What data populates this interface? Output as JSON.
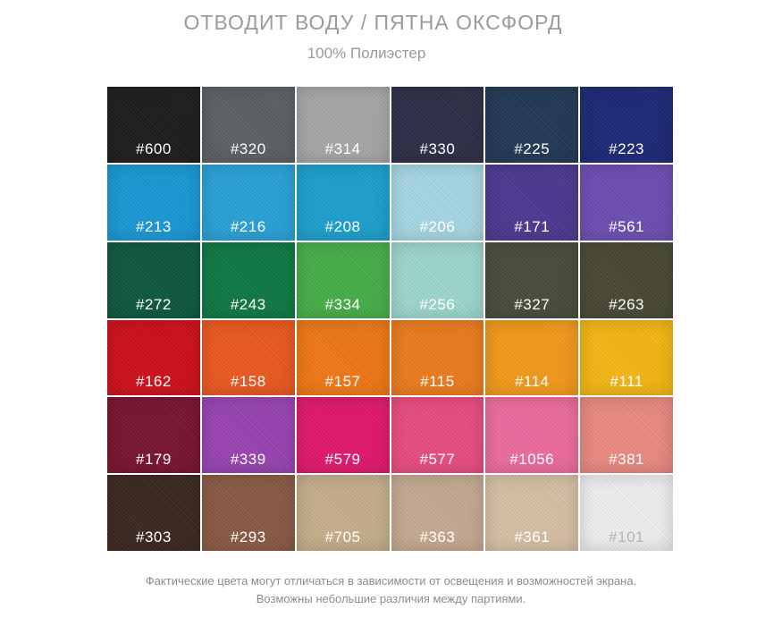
{
  "header": {
    "title": "ОТВОДИТ ВОДУ / ПЯТНА ОКСФОРД",
    "subtitle": "100%  Полиэстер"
  },
  "swatches": [
    {
      "code": "#600",
      "color": "#1e1e20"
    },
    {
      "code": "#320",
      "color": "#5d6266"
    },
    {
      "code": "#314",
      "color": "#a6a8aa"
    },
    {
      "code": "#330",
      "color": "#2f2f48"
    },
    {
      "code": "#225",
      "color": "#243a57"
    },
    {
      "code": "#223",
      "color": "#1e2a78"
    },
    {
      "code": "#213",
      "color": "#1a9ad6"
    },
    {
      "code": "#216",
      "color": "#2aa3d8"
    },
    {
      "code": "#208",
      "color": "#1da1cf"
    },
    {
      "code": "#206",
      "color": "#a8d9e6"
    },
    {
      "code": "#171",
      "color": "#4f3a92"
    },
    {
      "code": "#561",
      "color": "#6f4fb5"
    },
    {
      "code": "#272",
      "color": "#0f5a3e"
    },
    {
      "code": "#243",
      "color": "#0f7a45"
    },
    {
      "code": "#334",
      "color": "#48b04a"
    },
    {
      "code": "#256",
      "color": "#9fd9cf"
    },
    {
      "code": "#327",
      "color": "#4c4d3c"
    },
    {
      "code": "#263",
      "color": "#4a4a36"
    },
    {
      "code": "#162",
      "color": "#d0121b"
    },
    {
      "code": "#158",
      "color": "#ec5a22"
    },
    {
      "code": "#157",
      "color": "#f07a18"
    },
    {
      "code": "#115",
      "color": "#ee7d1f"
    },
    {
      "code": "#114",
      "color": "#f49b1c"
    },
    {
      "code": "#111",
      "color": "#f6b816"
    },
    {
      "code": "#179",
      "color": "#7b1530"
    },
    {
      "code": "#339",
      "color": "#9a45b3"
    },
    {
      "code": "#579",
      "color": "#e3196d"
    },
    {
      "code": "#577",
      "color": "#ea4e80"
    },
    {
      "code": "#1056",
      "color": "#ef6da0"
    },
    {
      "code": "#381",
      "color": "#ec8b83"
    },
    {
      "code": "#303",
      "color": "#3c2a22"
    },
    {
      "code": "#293",
      "color": "#8c5b45"
    },
    {
      "code": "#705",
      "color": "#c7b08d"
    },
    {
      "code": "#363",
      "color": "#c8ab93"
    },
    {
      "code": "#361",
      "color": "#d8c2a7"
    },
    {
      "code": "#101",
      "color": "#f1f1f1"
    }
  ],
  "footnote": {
    "line1": "Фактические цвета могут отличаться в зависимости от освещения и возможностей экрана.",
    "line2": "Возможны небольшие различия между партиями."
  }
}
